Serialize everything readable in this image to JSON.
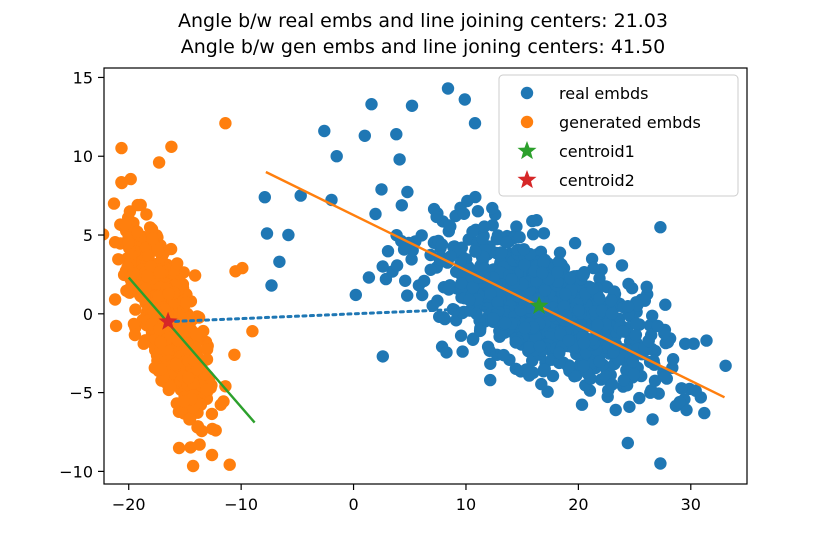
{
  "chart_data": {
    "type": "scatter",
    "title": "Angle b/w real embs and line joining centers: 21.03",
    "subtitle": "Angle b/w gen embs and line joning centers: 41.50",
    "xlabel": "",
    "ylabel": "",
    "xlim": [
      -22.2,
      35.0
    ],
    "ylim": [
      -10.8,
      15.6
    ],
    "xticks": [
      -20,
      -10,
      0,
      10,
      20,
      30
    ],
    "yticks": [
      -10,
      -5,
      0,
      5,
      10,
      15
    ],
    "xtick_labels": [
      "−20",
      "−10",
      "0",
      "10",
      "20",
      "30"
    ],
    "ytick_labels": [
      "−10",
      "−5",
      "0",
      "5",
      "10",
      "15"
    ],
    "grid": false,
    "legend_position": "top-right",
    "legend": [
      {
        "label": "real embds",
        "marker": "circle",
        "color": "#1f77b4"
      },
      {
        "label": "generated embds",
        "marker": "circle",
        "color": "#ff7f0e"
      },
      {
        "label": "centroid1",
        "marker": "star",
        "color": "#2ca02c"
      },
      {
        "label": "centroid2",
        "marker": "star",
        "color": "#d62728"
      }
    ],
    "real_cloud": {
      "color": "#1f77b4",
      "center": [
        16.5,
        0.5
      ],
      "sample_count": 900,
      "extreme_points": [
        [
          8.4,
          14.3
        ],
        [
          9.9,
          13.6
        ],
        [
          10.8,
          12.1
        ],
        [
          1.6,
          13.3
        ],
        [
          5.2,
          13.2
        ],
        [
          -2.6,
          11.6
        ],
        [
          1.0,
          11.3
        ],
        [
          3.8,
          11.4
        ],
        [
          -1.5,
          10.0
        ],
        [
          4.1,
          9.8
        ],
        [
          -7.9,
          7.4
        ],
        [
          -4.7,
          7.5
        ],
        [
          -5.8,
          5.0
        ],
        [
          -7.7,
          5.1
        ],
        [
          -6.6,
          3.3
        ],
        [
          -7.3,
          1.8
        ],
        [
          0.2,
          1.2
        ],
        [
          2.6,
          -2.7
        ],
        [
          9.7,
          -2.4
        ],
        [
          27.7,
          -4.0
        ],
        [
          27.3,
          -9.5
        ],
        [
          31.4,
          -1.7
        ],
        [
          33.1,
          -3.3
        ],
        [
          26.6,
          -6.7
        ],
        [
          24.4,
          -8.2
        ],
        [
          27.3,
          5.5
        ],
        [
          29.5,
          -1.9
        ],
        [
          31.2,
          -6.3
        ],
        [
          29.0,
          -5.6
        ]
      ]
    },
    "generated_cloud": {
      "color": "#ff7f0e",
      "center": [
        -16.5,
        -0.5
      ],
      "sample_count": 700,
      "extreme_points": [
        [
          -11.4,
          12.1
        ],
        [
          -16.2,
          10.6
        ],
        [
          -17.3,
          9.6
        ],
        [
          -19.2,
          6.9
        ],
        [
          -20.0,
          4.5
        ],
        [
          -9.9,
          2.9
        ],
        [
          -10.5,
          2.7
        ],
        [
          -9.0,
          -1.1
        ],
        [
          -10.6,
          -2.6
        ],
        [
          -11.4,
          -4.6
        ],
        [
          -13.7,
          -8.3
        ],
        [
          -14.6,
          -6.7
        ]
      ]
    },
    "lines": [
      {
        "name": "real_fit",
        "color": "#ff7f0e",
        "style": "solid",
        "x": [
          -7.8,
          33.0
        ],
        "y": [
          9.0,
          -5.3
        ]
      },
      {
        "name": "gen_fit",
        "color": "#2ca02c",
        "style": "solid",
        "x": [
          -20.0,
          -8.8
        ],
        "y": [
          2.3,
          -6.9
        ]
      },
      {
        "name": "center_link",
        "color": "#1f77b4",
        "style": "dotted",
        "x": [
          -16.5,
          16.5
        ],
        "y": [
          -0.5,
          0.5
        ]
      }
    ],
    "centroids": [
      {
        "name": "centroid1",
        "x": 16.5,
        "y": 0.5,
        "color": "#2ca02c"
      },
      {
        "name": "centroid2",
        "x": -16.5,
        "y": -0.5,
        "color": "#d62728"
      }
    ]
  }
}
